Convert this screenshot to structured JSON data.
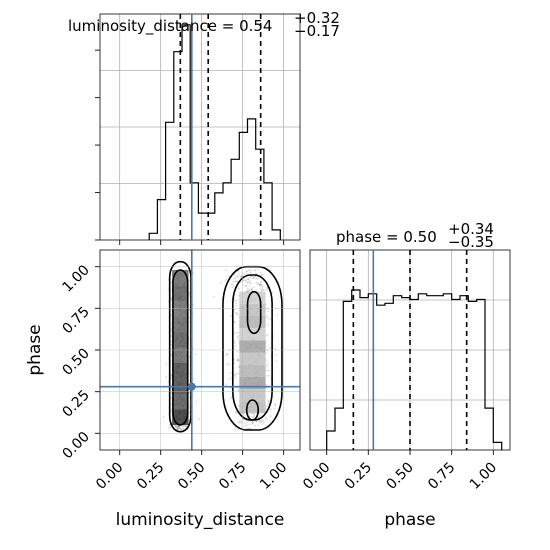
{
  "chart_data": [
    {
      "type": "histogram",
      "panel": "luminosity_distance marginal",
      "title": {
        "param": "luminosity_distance",
        "median": "0.54",
        "plus": "+0.32",
        "minus": "−0.17"
      },
      "xlim": [
        -0.12,
        1.1
      ],
      "bin_edges": [
        0.18,
        0.23,
        0.28,
        0.33,
        0.38,
        0.43,
        0.48,
        0.53,
        0.58,
        0.63,
        0.68,
        0.73,
        0.78,
        0.83,
        0.88,
        0.93,
        0.98
      ],
      "counts": [
        2,
        12,
        35,
        56,
        64,
        17,
        8,
        8,
        14,
        17,
        24,
        32,
        36,
        27,
        17,
        3
      ],
      "quantile_lines": [
        0.37,
        0.54,
        0.86
      ],
      "truth": 0.44,
      "grid": true
    },
    {
      "type": "histogram",
      "panel": "phase marginal",
      "title": {
        "param": "phase",
        "median": "0.50",
        "plus": "+0.34",
        "minus": "−0.35"
      },
      "xlim": [
        -0.1,
        1.1
      ],
      "ylim": [
        0,
        1.05
      ],
      "bin_edges": [
        0.0,
        0.05,
        0.1,
        0.15,
        0.2,
        0.25,
        0.3,
        0.35,
        0.4,
        0.45,
        0.5,
        0.55,
        0.6,
        0.65,
        0.7,
        0.75,
        0.8,
        0.85,
        0.9,
        0.95,
        1.0,
        1.05
      ],
      "counts": [
        0.1,
        0.22,
        0.78,
        0.84,
        0.8,
        0.82,
        0.76,
        0.77,
        0.81,
        0.8,
        0.79,
        0.82,
        0.81,
        0.81,
        0.82,
        0.79,
        0.81,
        0.78,
        0.79,
        0.22,
        0.04
      ],
      "quantile_lines": [
        0.16,
        0.5,
        0.84
      ],
      "truth": 0.28,
      "xticks": [
        "0.00",
        "0.25",
        "0.50",
        "0.75",
        "1.00"
      ],
      "xlabel": "phase",
      "grid": true
    },
    {
      "type": "scatter",
      "panel": "2D posterior: luminosity_distance vs phase",
      "xlim": [
        -0.12,
        1.1
      ],
      "ylim": [
        -0.1,
        1.1
      ],
      "xticks": [
        "0.00",
        "0.25",
        "0.50",
        "0.75",
        "1.00"
      ],
      "yticks": [
        "0.00",
        "0.25",
        "0.50",
        "0.75",
        "1.00"
      ],
      "xlabel": "luminosity_distance",
      "ylabel": "phase",
      "truth": {
        "x": 0.44,
        "y": 0.28
      },
      "clusters": [
        {
          "x_center": 0.37,
          "x_width": 0.05,
          "y_range": [
            0.02,
            0.98
          ],
          "weight": 0.6
        },
        {
          "x_center": 0.8,
          "x_width": 0.1,
          "y_range": [
            0.02,
            0.98
          ],
          "weight": 0.4
        }
      ],
      "grid": true,
      "colors": {
        "contour": "#000000",
        "truth": "#4c78a8",
        "density_dark": "#222222",
        "density_light": "#bdbdbd"
      }
    }
  ]
}
